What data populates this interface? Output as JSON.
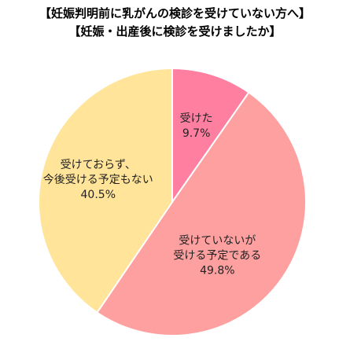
{
  "chart_data": {
    "type": "pie",
    "title_lines": [
      "【妊娠判明前に乳がんの検診を受けていない方へ】",
      "【妊娠・出産後に検診を受けましたか】"
    ],
    "slices": [
      {
        "label_lines": [
          "受けた"
        ],
        "value": 9.7,
        "value_label": "9.7%",
        "color": "#ff7fa1"
      },
      {
        "label_lines": [
          "受けていないが",
          "受ける予定である"
        ],
        "value": 49.8,
        "value_label": "49.8%",
        "color": "#ffa0a0"
      },
      {
        "label_lines": [
          "受けておらず、",
          "今後受ける予定もない"
        ],
        "value": 40.5,
        "value_label": "40.5%",
        "color": "#ffe49a"
      }
    ]
  }
}
